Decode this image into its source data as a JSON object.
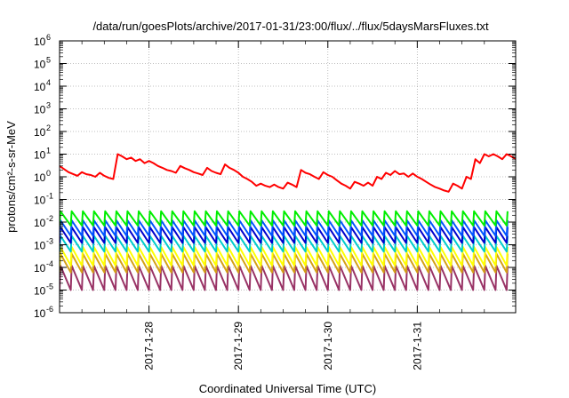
{
  "chart_data": {
    "type": "line",
    "title": "/data/run/goesPlots/archive/2017-01-31/23:00/flux/../flux/5daysMarsFluxes.txt",
    "xlabel": "Coordinated Universal Time (UTC)",
    "ylabel": "protons/cm²-s-sr-MeV",
    "y_scale": "log",
    "ylim": [
      1e-06,
      1000000.0
    ],
    "xlim": [
      0.0,
      5.1
    ],
    "grid": true,
    "y_ticks": [
      {
        "base": "10",
        "exp": "-6",
        "value": -6
      },
      {
        "base": "10",
        "exp": "-5",
        "value": -5
      },
      {
        "base": "10",
        "exp": "-4",
        "value": -4
      },
      {
        "base": "10",
        "exp": "-3",
        "value": -3
      },
      {
        "base": "10",
        "exp": "-2",
        "value": -2
      },
      {
        "base": "10",
        "exp": "-1",
        "value": -1
      },
      {
        "base": "10",
        "exp": "0",
        "value": 0
      },
      {
        "base": "10",
        "exp": "1",
        "value": 1
      },
      {
        "base": "10",
        "exp": "2",
        "value": 2
      },
      {
        "base": "10",
        "exp": "3",
        "value": 3
      },
      {
        "base": "10",
        "exp": "4",
        "value": 4
      },
      {
        "base": "10",
        "exp": "5",
        "value": 5
      },
      {
        "base": "10",
        "exp": "6",
        "value": 6
      }
    ],
    "x_ticks": [
      {
        "label": "2017-1-28",
        "value": 1.0
      },
      {
        "label": "2017-1-29",
        "value": 2.0
      },
      {
        "label": "2017-1-30",
        "value": 3.0
      },
      {
        "label": "2017-1-31",
        "value": 4.0
      }
    ],
    "series": [
      {
        "color": "#ff0000",
        "x": [
          0.0,
          0.05,
          0.1,
          0.2,
          0.25,
          0.3,
          0.35,
          0.4,
          0.45,
          0.5,
          0.55,
          0.6,
          0.65,
          0.7,
          0.75,
          0.8,
          0.85,
          0.9,
          0.95,
          1.0,
          1.05,
          1.1,
          1.15,
          1.2,
          1.25,
          1.3,
          1.35,
          1.4,
          1.45,
          1.5,
          1.55,
          1.6,
          1.65,
          1.7,
          1.75,
          1.8,
          1.85,
          1.9,
          1.95,
          2.0,
          2.05,
          2.1,
          2.15,
          2.2,
          2.25,
          2.3,
          2.35,
          2.4,
          2.45,
          2.5,
          2.55,
          2.6,
          2.65,
          2.7,
          2.75,
          2.8,
          2.85,
          2.9,
          2.95,
          3.0,
          3.05,
          3.1,
          3.15,
          3.2,
          3.25,
          3.3,
          3.35,
          3.4,
          3.45,
          3.5,
          3.55,
          3.6,
          3.65,
          3.7,
          3.75,
          3.8,
          3.85,
          3.9,
          3.95,
          4.0,
          4.05,
          4.1,
          4.15,
          4.2,
          4.25,
          4.3,
          4.35,
          4.4,
          4.45,
          4.5,
          4.55,
          4.6,
          4.65,
          4.7,
          4.75,
          4.8,
          4.85,
          4.9,
          4.95,
          5.0,
          5.05,
          5.1
        ],
        "y": [
          3.0,
          2.2,
          1.6,
          1.1,
          1.6,
          1.3,
          1.2,
          1.0,
          1.5,
          1.1,
          0.9,
          0.8,
          10.0,
          8.0,
          6.0,
          7.0,
          5.0,
          6.0,
          4.0,
          5.0,
          4.0,
          3.0,
          2.5,
          2.0,
          1.8,
          1.5,
          3.0,
          2.4,
          2.0,
          1.6,
          1.4,
          1.2,
          2.5,
          1.8,
          1.5,
          1.3,
          3.5,
          2.5,
          2.0,
          1.5,
          1.0,
          0.8,
          0.6,
          0.4,
          0.5,
          0.4,
          0.35,
          0.45,
          0.35,
          0.3,
          0.55,
          0.45,
          0.35,
          2.0,
          1.5,
          1.3,
          1.0,
          0.8,
          1.6,
          1.2,
          1.0,
          0.7,
          0.5,
          0.4,
          0.3,
          0.6,
          0.5,
          0.4,
          0.55,
          0.4,
          1.0,
          0.8,
          1.5,
          1.2,
          1.8,
          1.3,
          1.4,
          1.0,
          1.4,
          1.0,
          0.8,
          0.6,
          0.45,
          0.35,
          0.3,
          0.25,
          0.22,
          0.5,
          0.4,
          0.3,
          1.0,
          0.8,
          6.0,
          4.0,
          10.0,
          8.0,
          10.0,
          8.0,
          6.0,
          10.0,
          8.0,
          6.0
        ]
      },
      {
        "color": "#00ee00",
        "sawtooth": {
          "hi": 0.03,
          "lo": 0.007,
          "period": 0.125
        }
      },
      {
        "color": "#0055ff",
        "sawtooth": {
          "hi": 0.012,
          "lo": 0.0025,
          "period": 0.125
        }
      },
      {
        "color": "#0000cc",
        "sawtooth": {
          "hi": 0.006,
          "lo": 0.0012,
          "period": 0.125
        }
      },
      {
        "color": "#00cccc",
        "sawtooth": {
          "hi": 0.0025,
          "lo": 0.0005,
          "period": 0.125
        }
      },
      {
        "color": "#ffff00",
        "sawtooth": {
          "hi": 0.0008,
          "lo": 0.00012,
          "period": 0.125
        }
      },
      {
        "color": "#d4a017",
        "sawtooth": {
          "hi": 0.0004,
          "lo": 6e-05,
          "period": 0.125
        }
      },
      {
        "color": "#993366",
        "sawtooth": {
          "hi": 0.00012,
          "lo": 1e-05,
          "period": 0.125
        }
      }
    ]
  }
}
